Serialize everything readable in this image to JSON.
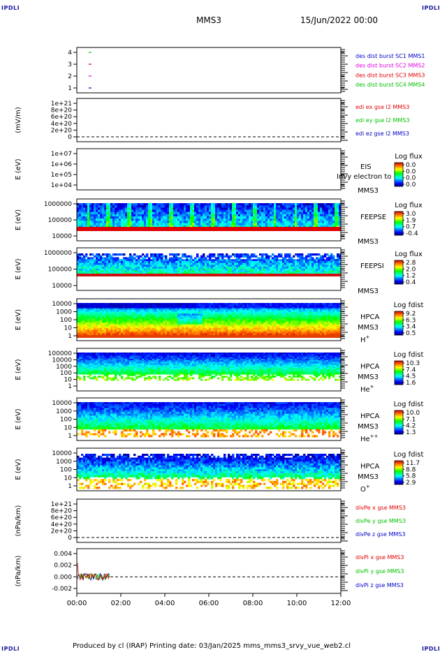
{
  "header": {
    "corner_tl": "IPDLI",
    "corner_tr": "IPDLI",
    "corner_bl": "IPDLI",
    "corner_br": "IPDLI",
    "spacecraft": "MMS3",
    "date": "15/Jun/2022 00:00"
  },
  "footer": {
    "text": "Produced by cl (IRAP)   Printing date: 03/Jan/2025   mms_mms3_srvy_vue_web2.cl"
  },
  "colors": {
    "blue": "#0000c8",
    "magenta": "#e000e0",
    "red": "#e00000",
    "green": "#00c000"
  },
  "chart_data": [
    {
      "id": "panel1",
      "type": "line",
      "yticks": [
        "4",
        "3",
        "2",
        "1"
      ],
      "ylim": [
        0.5,
        4.5
      ],
      "points": [
        {
          "x": "00:36",
          "y": 4,
          "color": "green"
        },
        {
          "x": "00:36",
          "y": 3,
          "color": "red"
        },
        {
          "x": "00:36",
          "y": 2,
          "color": "magenta"
        },
        {
          "x": "00:36",
          "y": 1,
          "color": "blue"
        }
      ],
      "legend": [
        {
          "text": "des dist burst SC1 MMS1",
          "color": "blue"
        },
        {
          "text": "des dist burst SC2 MMS2",
          "color": "magenta"
        },
        {
          "text": "des dist burst SC3 MMS3",
          "color": "red"
        },
        {
          "text": "des dist burst SC4 MMS4",
          "color": "green"
        }
      ]
    },
    {
      "id": "panel2",
      "type": "line",
      "ylabel": "(mV/m)",
      "yticks": [
        "1e+21",
        "8e+20",
        "6e+20",
        "4e+20",
        "2e+20",
        "0"
      ],
      "legend": [
        {
          "text": "edi ex gse l2 MMS3",
          "color": "red"
        },
        {
          "text": "edi ey gse l2 MMS3",
          "color": "green"
        },
        {
          "text": "edi ez gse l2 MMS3",
          "color": "blue"
        }
      ]
    },
    {
      "id": "panel3",
      "type": "heatmap",
      "ylabel": "E (eV)",
      "yticks": [
        "1e+07",
        "1e+06",
        "1e+05",
        "1e+04"
      ],
      "instrument": "EIS",
      "overlay_text": "Invy electron to",
      "sc": "MMS3",
      "colorbar_title": "Log flux",
      "colorbar_ticks": [
        "0.0",
        "0.0",
        "0.0",
        "0.0"
      ]
    },
    {
      "id": "panel4",
      "type": "heatmap",
      "ylabel": "E (eV)",
      "yticks": [
        "1000000",
        "100000",
        "10000"
      ],
      "instrument": "FEEPSE",
      "sc": "MMS3",
      "colorbar_title": "Log flux",
      "colorbar_ticks": [
        "3.0",
        "1.9",
        "0.7",
        "-0.4"
      ]
    },
    {
      "id": "panel5",
      "type": "heatmap",
      "ylabel": "E (eV)",
      "yticks": [
        "1000000",
        "100000",
        "10000"
      ],
      "instrument": "FEEPSI",
      "sc": "MMS3",
      "colorbar_title": "Log flux",
      "colorbar_ticks": [
        "2.8",
        "2.0",
        "1.2",
        "0.4"
      ]
    },
    {
      "id": "panel6",
      "type": "heatmap",
      "ylabel": "E (eV)",
      "yticks": [
        "10000",
        "1000",
        "100",
        "10",
        "1"
      ],
      "instrument": "HPCA",
      "sc": "MMS3",
      "species": "H",
      "charge": "+",
      "colorbar_title": "Log fdist",
      "colorbar_ticks": [
        "9.2",
        "6.3",
        "3.4",
        "0.5"
      ]
    },
    {
      "id": "panel7",
      "type": "heatmap",
      "ylabel": "E (eV)",
      "yticks": [
        "100000",
        "10000",
        "1000",
        "100",
        "10",
        "1"
      ],
      "instrument": "HPCA",
      "sc": "MMS3",
      "species": "He",
      "charge": "+",
      "colorbar_title": "Log fdist",
      "colorbar_ticks": [
        "10.3",
        "7.4",
        "4.5",
        "1.6"
      ]
    },
    {
      "id": "panel8",
      "type": "heatmap",
      "ylabel": "E (eV)",
      "yticks": [
        "10000",
        "1000",
        "100",
        "10",
        "1"
      ],
      "instrument": "HPCA",
      "sc": "MMS3",
      "species": "He",
      "charge": "++",
      "colorbar_title": "Log fdist",
      "colorbar_ticks": [
        "10.0",
        "7.1",
        "4.2",
        "1.3"
      ]
    },
    {
      "id": "panel9",
      "type": "heatmap",
      "ylabel": "E (eV)",
      "yticks": [
        "10000",
        "1000",
        "100",
        "10",
        "1"
      ],
      "instrument": "HPCA",
      "sc": "MMS3",
      "species": "O",
      "charge": "+",
      "colorbar_title": "Log fdist",
      "colorbar_ticks": [
        "11.7",
        "8.8",
        "5.8",
        "2.9"
      ]
    },
    {
      "id": "panel10",
      "type": "line",
      "ylabel": "(nPa/km)",
      "yticks": [
        "1e+21",
        "8e+20",
        "6e+20",
        "4e+20",
        "2e+20",
        "0"
      ],
      "legend": [
        {
          "text": "divPe x gse MMS3",
          "color": "red"
        },
        {
          "text": "divPe y gse MMS3",
          "color": "green"
        },
        {
          "text": "divPe z gse MMS3",
          "color": "blue"
        }
      ]
    },
    {
      "id": "panel11",
      "type": "line",
      "ylabel": "(nPa/km)",
      "yticks": [
        "0.004",
        "0.002",
        "0.000",
        "-0.002"
      ],
      "ylim": [
        -0.003,
        0.005
      ],
      "legend": [
        {
          "text": "divPi x gse MMS3",
          "color": "red"
        },
        {
          "text": "divPi y gse MMS3",
          "color": "green"
        },
        {
          "text": "divPi z gse MMS3",
          "color": "blue"
        }
      ]
    }
  ],
  "xaxis": {
    "ticks": [
      "00:00",
      "02:00",
      "04:00",
      "06:00",
      "08:00",
      "10:00",
      "12:00"
    ]
  }
}
